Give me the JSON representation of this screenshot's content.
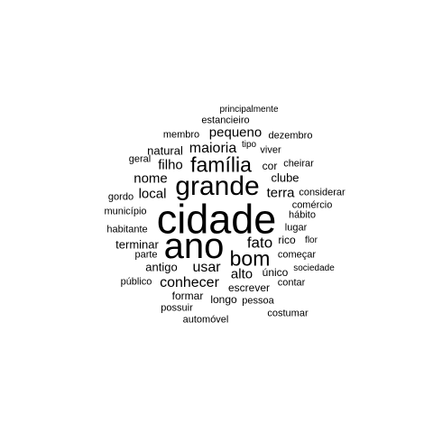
{
  "text_color": "#000000",
  "background_color": "#ffffff",
  "words": {
    "cidade": "cidade",
    "ano": "ano",
    "grande": "grande",
    "familia": "família",
    "bom": "bom",
    "fato": "fato",
    "maioria": "maioria",
    "conhecer": "conhecer",
    "usar": "usar",
    "pequeno": "pequeno",
    "filho": "filho",
    "nome": "nome",
    "local": "local",
    "terra": "terra",
    "alto": "alto",
    "terminar": "terminar",
    "antigo": "antigo",
    "natural": "natural",
    "clube": "clube",
    "escrever": "escrever",
    "formar": "formar",
    "longo": "longo",
    "unico": "único",
    "estancieiro": "estancieiro",
    "membro": "membro",
    "dezembro": "dezembro",
    "principalmente": "principalmente",
    "tipo": "tipo",
    "viver": "viver",
    "geral": "geral",
    "cor": "cor",
    "cheirar": "cheirar",
    "gordo": "gordo",
    "considerar": "considerar",
    "municipio": "município",
    "comercio": "comércio",
    "habito": "hábito",
    "habitante": "habitante",
    "lugar": "lugar",
    "rico": "rico",
    "flor": "flor",
    "parte": "parte",
    "comecar": "começar",
    "sociedade": "sociedade",
    "publico": "público",
    "contar": "contar",
    "pessoa": "pessoa",
    "possuir": "possuir",
    "costumar": "costumar",
    "automovel": "automóvel"
  }
}
